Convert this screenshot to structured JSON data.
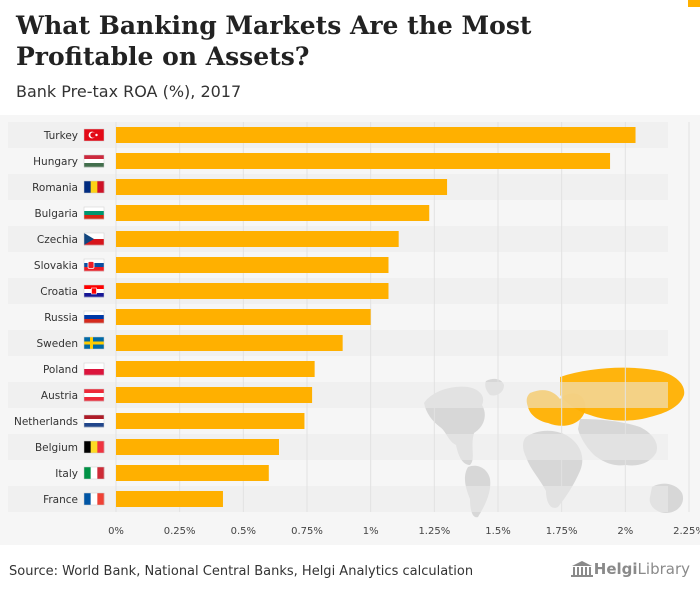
{
  "header": {
    "title": "What Banking Markets Are the Most Profitable on Assets?",
    "subtitle": "Bank Pre-tax ROA (%), 2017"
  },
  "footer": {
    "source": "Source: World Bank, National Central Banks, Helgi Analytics calculation",
    "brand_part1": "Helgi",
    "brand_part2": "Library",
    "logo_icon": "building-columns-icon"
  },
  "colors": {
    "bar": "#ffb000",
    "row_alt": "#ebebeb",
    "panel": "#f6f6f6",
    "map_land": "#d4d4d4",
    "map_highlight": "#ffb000"
  },
  "decor": {
    "background": "world-map-highlight-europe"
  },
  "chart_data": {
    "type": "bar",
    "orientation": "horizontal",
    "title": "What Banking Markets Are the Most Profitable on Assets?",
    "subtitle": "Bank Pre-tax ROA (%), 2017",
    "categories": [
      "Turkey",
      "Hungary",
      "Romania",
      "Bulgaria",
      "Czechia",
      "Slovakia",
      "Croatia",
      "Russia",
      "Sweden",
      "Poland",
      "Austria",
      "Netherlands",
      "Belgium",
      "Italy",
      "France"
    ],
    "flags": [
      "flag-turkey",
      "flag-hungary",
      "flag-romania",
      "flag-bulgaria",
      "flag-czechia",
      "flag-slovakia",
      "flag-croatia",
      "flag-russia",
      "flag-sweden",
      "flag-poland",
      "flag-austria",
      "flag-netherlands",
      "flag-belgium",
      "flag-italy",
      "flag-france"
    ],
    "values": [
      2.04,
      1.94,
      1.3,
      1.23,
      1.11,
      1.07,
      1.07,
      1.0,
      0.89,
      0.78,
      0.77,
      0.74,
      0.64,
      0.6,
      0.42
    ],
    "xlim": [
      0,
      2.25
    ],
    "xticks": [
      0,
      0.25,
      0.5,
      0.75,
      1,
      1.25,
      1.5,
      1.75,
      2,
      2.25
    ],
    "xtick_labels": [
      "0%",
      "0.25%",
      "0.5%",
      "0.75%",
      "1%",
      "1.25%",
      "1.5%",
      "1.75%",
      "2%",
      "2.25%"
    ],
    "xlabel": "",
    "ylabel": "",
    "grid": true,
    "legend": "none"
  }
}
